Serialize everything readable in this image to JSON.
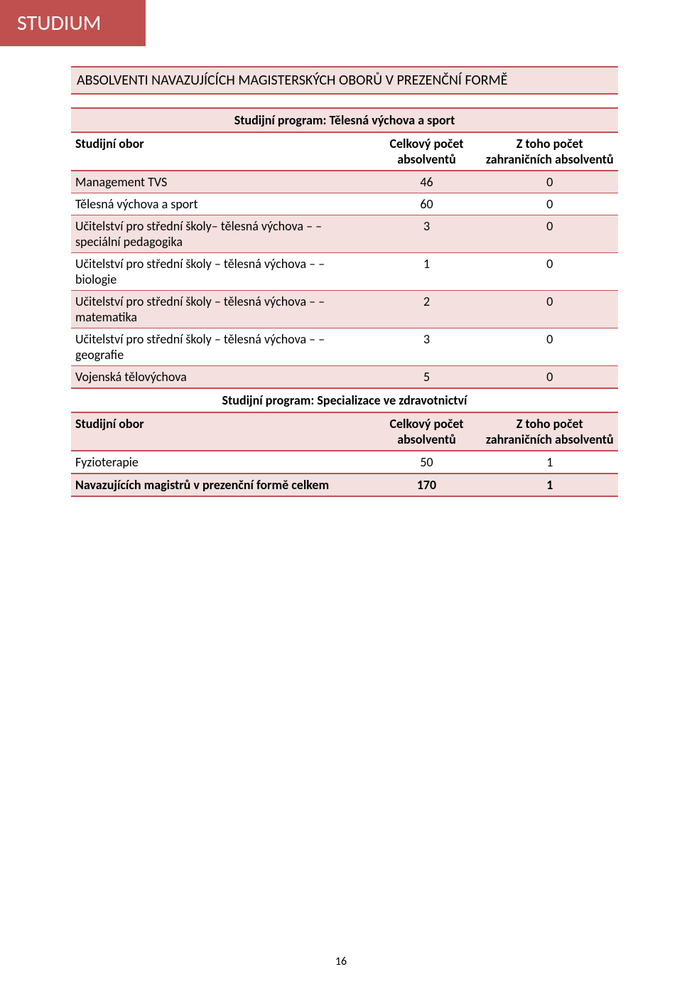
{
  "colors": {
    "tab_bg": "#c05050",
    "tab_text": "#ffffff",
    "accent": "#c05050",
    "tint_bg": "#f3e0df",
    "text": "#000000"
  },
  "page_number": "16",
  "tab_label": "STUDIUM",
  "section_title": "ABSOLVENTI NAVAZUJÍCÍCH MAGISTERSKÝCH OBORŮ V PREZENČNÍ FORMĚ",
  "program1_title": "Studijní program: Tělesná výchova a sport",
  "col_headers": {
    "c1": "Studijní obor",
    "c2": "Celkový počet absolventů",
    "c3": "Z toho počet zahraničních absolventů"
  },
  "program1_rows": [
    {
      "label": "Management TVS",
      "c2": "46",
      "c3": "0"
    },
    {
      "label": "Tělesná výchova a sport",
      "c2": "60",
      "c3": "0"
    },
    {
      "label": "Učitelství pro střední školy– tělesná výchova – – speciální pedagogika",
      "c2": "3",
      "c3": "0"
    },
    {
      "label": "Učitelství pro střední školy – tělesná výchova – – biologie",
      "c2": "1",
      "c3": "0"
    },
    {
      "label": "Učitelství pro střední školy – tělesná výchova – – matematika",
      "c2": "2",
      "c3": "0"
    },
    {
      "label": "Učitelství pro střední školy – tělesná výchova – – geografie",
      "c2": "3",
      "c3": "0"
    },
    {
      "label": "Vojenská tělovýchova",
      "c2": "5",
      "c3": "0"
    }
  ],
  "program2_title": "Studijní program: Specializace ve zdravotnictví",
  "program2_rows": [
    {
      "label": "Fyzioterapie",
      "c2": "50",
      "c3": "1"
    }
  ],
  "total_row": {
    "label": "Navazujících magistrů v prezenční formě celkem",
    "c2": "170",
    "c3": "1"
  }
}
